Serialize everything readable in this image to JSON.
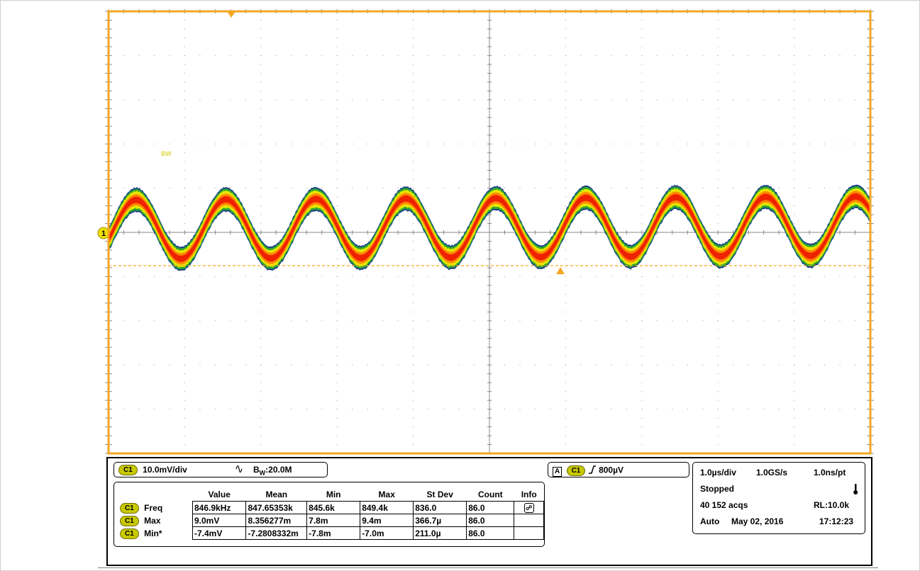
{
  "colors": {
    "graticule_border": "#f5a623",
    "trace_core": "#ee2200",
    "trace_mid": "#ff8800",
    "trace_edge": "#e6e600",
    "trace_outer": "#2da82d",
    "trace_speck": "#1a3a8c",
    "chip": "#c8c800"
  },
  "markers": {
    "channel": "1",
    "bw_marker": "BW"
  },
  "channel_panel": {
    "chip": "C1",
    "scale": "10.0mV/div",
    "coupling_icon": "ac-coupling-icon",
    "bw_prefix": "B",
    "bw_sub": "W",
    "bw_value": ":20.0M"
  },
  "trigger_panel": {
    "source_label": "A",
    "chip": "C1",
    "slope_icon": "rising-edge-icon",
    "level": "800µV"
  },
  "measurements": {
    "columns": [
      "Value",
      "Mean",
      "Min",
      "Max",
      "St Dev",
      "Count",
      "Info"
    ],
    "rows": [
      {
        "chip": "C1",
        "name": "Freq",
        "value": "846.9kHz",
        "mean": "847.65353k",
        "min": "845.6k",
        "max": "849.4k",
        "stdev": "836.0",
        "count": "86.0",
        "info_icon": "info-icon"
      },
      {
        "chip": "C1",
        "name": "Max",
        "value": "9.0mV",
        "mean": "8.356277m",
        "min": "7.8m",
        "max": "9.4m",
        "stdev": "366.7µ",
        "count": "86.0",
        "info_icon": ""
      },
      {
        "chip": "C1",
        "name": "Min*",
        "value": "-7.4mV",
        "mean": "-7.2808332m",
        "min": "-7.8m",
        "max": "-7.0m",
        "stdev": "211.0µ",
        "count": "86.0",
        "info_icon": ""
      }
    ]
  },
  "acquisition": {
    "time_div": "1.0µs/div",
    "sample_rate": "1.0GS/s",
    "resolution": "1.0ns/pt",
    "state": "Stopped",
    "state_icon": "thermometer-icon",
    "acqs": "40 152 acqs",
    "record_length": "RL:10.0k",
    "mode": "Auto",
    "date": "May 02, 2016",
    "time": "17:12:23"
  },
  "chart_data": {
    "type": "line",
    "title": "",
    "xlabel": "",
    "ylabel": "",
    "x_divisions": 10,
    "y_divisions": 10,
    "x_scale_per_div": "1.0µs",
    "y_scale_per_div": "10.0mV",
    "grid": true,
    "series": [
      {
        "freq_khz": 846.9,
        "max_mv": 9.0,
        "min_mv": -7.4,
        "noise_band_mv": 3.0
      }
    ]
  }
}
